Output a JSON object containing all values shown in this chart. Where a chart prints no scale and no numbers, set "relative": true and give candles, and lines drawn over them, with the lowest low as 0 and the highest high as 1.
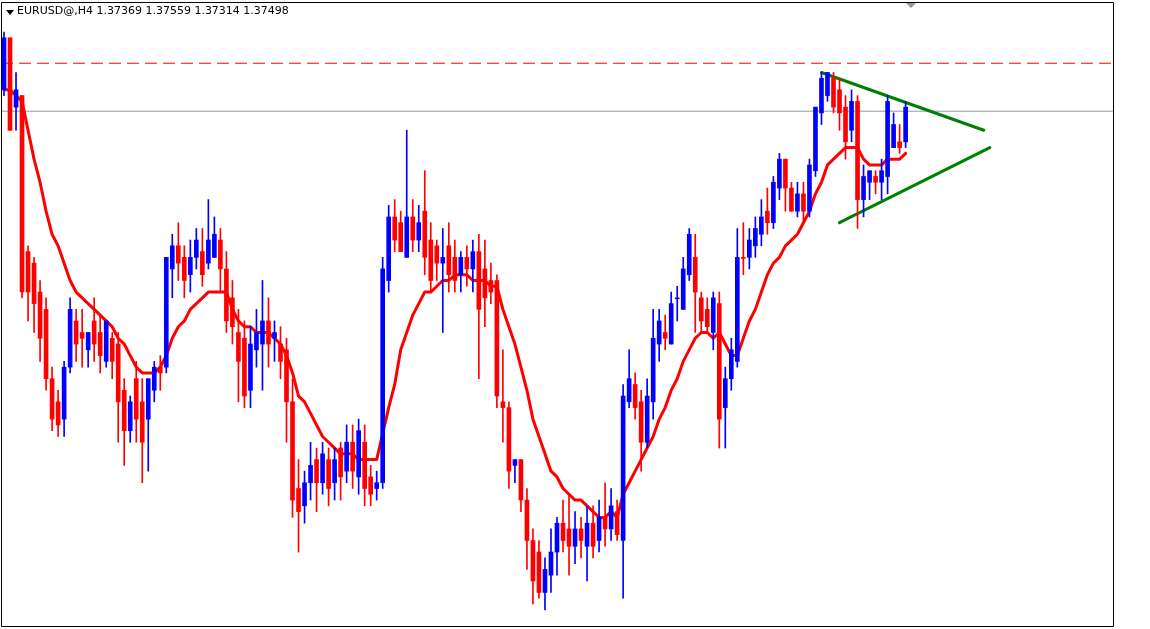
{
  "chart_data": {
    "type": "candlestick",
    "title": "EURUSD@,H4 1.37369 1.37559 1.37314 1.37498",
    "relative": true,
    "categories": [
      null,
      null,
      null,
      null,
      null,
      null,
      null,
      null,
      null,
      null,
      null,
      null,
      null,
      null,
      null,
      null,
      null,
      null,
      null,
      null,
      null,
      null,
      null,
      null,
      null,
      null,
      null,
      null,
      null,
      null,
      null,
      null,
      null,
      null,
      null,
      null,
      null,
      null,
      null,
      null,
      null,
      null,
      null,
      null,
      null,
      null,
      null,
      null,
      null,
      null,
      null,
      null,
      null,
      null,
      null,
      null,
      null,
      null,
      null,
      null,
      null,
      null,
      null,
      null,
      null,
      null,
      null,
      null,
      null,
      null,
      null,
      null,
      null,
      null,
      null,
      null,
      null,
      null,
      null,
      null,
      null,
      null,
      null,
      null,
      null,
      null,
      null,
      null,
      null,
      null,
      null,
      null,
      null,
      null,
      null,
      null,
      null,
      null,
      null,
      null,
      null,
      null,
      null,
      null,
      null,
      null,
      null,
      null,
      null,
      null,
      null,
      null,
      null,
      null,
      null,
      null,
      null,
      null,
      null,
      null,
      null,
      null,
      null,
      null,
      null,
      null,
      null,
      null,
      null,
      null,
      null,
      null,
      null,
      null,
      null,
      null,
      null,
      null,
      null,
      null,
      null,
      null,
      null,
      null,
      null,
      null,
      null,
      null,
      null,
      null,
      null,
      null,
      null,
      null,
      null,
      null,
      null,
      null,
      null,
      null,
      null,
      null,
      null,
      null,
      null,
      null,
      null,
      null,
      null,
      null,
      null,
      null,
      null,
      null,
      null,
      null,
      null,
      null,
      null,
      null,
      null,
      null,
      null,
      null,
      null
    ],
    "ohlc": [
      [
        0.9,
        1.0,
        0.89,
        0.99
      ],
      [
        0.99,
        0.99,
        0.83,
        0.83
      ],
      [
        0.87,
        0.93,
        0.83,
        0.9
      ],
      [
        0.89,
        0.89,
        0.54,
        0.55
      ],
      [
        0.62,
        0.63,
        0.5,
        0.55
      ],
      [
        0.6,
        0.61,
        0.48,
        0.53
      ],
      [
        0.55,
        0.57,
        0.43,
        0.47
      ],
      [
        0.52,
        0.54,
        0.38,
        0.4
      ],
      [
        0.4,
        0.42,
        0.31,
        0.33
      ],
      [
        0.36,
        0.38,
        0.3,
        0.32
      ],
      [
        0.33,
        0.43,
        0.3,
        0.42
      ],
      [
        0.42,
        0.54,
        0.41,
        0.52
      ],
      [
        0.5,
        0.52,
        0.43,
        0.46
      ],
      [
        0.48,
        0.52,
        0.42,
        0.47
      ],
      [
        0.45,
        0.48,
        0.42,
        0.48
      ],
      [
        0.5,
        0.54,
        0.43,
        0.46
      ],
      [
        0.48,
        0.51,
        0.41,
        0.44
      ],
      [
        0.43,
        0.5,
        0.42,
        0.5
      ],
      [
        0.47,
        0.48,
        0.4,
        0.43
      ],
      [
        0.46,
        0.48,
        0.29,
        0.36
      ],
      [
        0.38,
        0.4,
        0.25,
        0.31
      ],
      [
        0.31,
        0.37,
        0.29,
        0.36
      ],
      [
        0.4,
        0.43,
        0.29,
        0.33
      ],
      [
        0.36,
        0.4,
        0.22,
        0.29
      ],
      [
        0.33,
        0.4,
        0.24,
        0.4
      ],
      [
        0.38,
        0.43,
        0.36,
        0.42
      ],
      [
        0.42,
        0.44,
        0.38,
        0.41
      ],
      [
        0.42,
        0.61,
        0.41,
        0.61
      ],
      [
        0.59,
        0.65,
        0.54,
        0.63
      ],
      [
        0.63,
        0.67,
        0.57,
        0.6
      ],
      [
        0.61,
        0.63,
        0.54,
        0.57
      ],
      [
        0.58,
        0.64,
        0.55,
        0.61
      ],
      [
        0.61,
        0.66,
        0.59,
        0.64
      ],
      [
        0.62,
        0.66,
        0.56,
        0.58
      ],
      [
        0.6,
        0.71,
        0.59,
        0.64
      ],
      [
        0.61,
        0.68,
        0.61,
        0.65
      ],
      [
        0.64,
        0.66,
        0.55,
        0.59
      ],
      [
        0.59,
        0.62,
        0.48,
        0.5
      ],
      [
        0.54,
        0.57,
        0.46,
        0.49
      ],
      [
        0.48,
        0.52,
        0.36,
        0.43
      ],
      [
        0.47,
        0.5,
        0.35,
        0.37
      ],
      [
        0.38,
        0.49,
        0.35,
        0.46
      ],
      [
        0.45,
        0.52,
        0.42,
        0.48
      ],
      [
        0.46,
        0.57,
        0.38,
        0.5
      ],
      [
        0.5,
        0.54,
        0.42,
        0.46
      ],
      [
        0.47,
        0.5,
        0.43,
        0.48
      ],
      [
        0.46,
        0.49,
        0.4,
        0.43
      ],
      [
        0.45,
        0.47,
        0.29,
        0.36
      ],
      [
        0.36,
        0.4,
        0.16,
        0.19
      ],
      [
        0.21,
        0.26,
        0.1,
        0.17
      ],
      [
        0.18,
        0.24,
        0.15,
        0.22
      ],
      [
        0.22,
        0.29,
        0.19,
        0.25
      ],
      [
        0.26,
        0.28,
        0.17,
        0.22
      ],
      [
        0.22,
        0.29,
        0.2,
        0.27
      ],
      [
        0.26,
        0.28,
        0.18,
        0.21
      ],
      [
        0.22,
        0.28,
        0.19,
        0.26
      ],
      [
        0.28,
        0.29,
        0.19,
        0.23
      ],
      [
        0.24,
        0.32,
        0.22,
        0.29
      ],
      [
        0.29,
        0.32,
        0.21,
        0.24
      ],
      [
        0.23,
        0.33,
        0.2,
        0.31
      ],
      [
        0.29,
        0.32,
        0.18,
        0.21
      ],
      [
        0.23,
        0.25,
        0.18,
        0.2
      ],
      [
        0.21,
        0.24,
        0.19,
        0.22
      ],
      [
        0.22,
        0.61,
        0.21,
        0.59
      ],
      [
        0.57,
        0.7,
        0.55,
        0.68
      ],
      [
        0.68,
        0.71,
        0.62,
        0.64
      ],
      [
        0.67,
        0.69,
        0.62,
        0.62
      ],
      [
        0.61,
        0.83,
        0.61,
        0.68
      ],
      [
        0.68,
        0.71,
        0.62,
        0.64
      ],
      [
        0.64,
        0.7,
        0.62,
        0.67
      ],
      [
        0.69,
        0.76,
        0.58,
        0.61
      ],
      [
        0.64,
        0.67,
        0.55,
        0.57
      ],
      [
        0.63,
        0.64,
        0.57,
        0.6
      ],
      [
        0.6,
        0.66,
        0.48,
        0.61
      ],
      [
        0.63,
        0.67,
        0.55,
        0.58
      ],
      [
        0.61,
        0.64,
        0.55,
        0.57
      ],
      [
        0.58,
        0.62,
        0.55,
        0.61
      ],
      [
        0.61,
        0.63,
        0.56,
        0.59
      ],
      [
        0.59,
        0.64,
        0.55,
        0.62
      ],
      [
        0.62,
        0.65,
        0.4,
        0.52
      ],
      [
        0.59,
        0.64,
        0.49,
        0.54
      ],
      [
        0.57,
        0.6,
        0.53,
        0.55
      ],
      [
        0.57,
        0.58,
        0.35,
        0.37
      ],
      [
        0.36,
        0.45,
        0.29,
        0.35
      ],
      [
        0.35,
        0.36,
        0.21,
        0.24
      ],
      [
        0.25,
        0.26,
        0.22,
        0.26
      ],
      [
        0.26,
        0.26,
        0.17,
        0.19
      ],
      [
        0.19,
        0.21,
        0.07,
        0.12
      ],
      [
        0.12,
        0.14,
        0.01,
        0.05
      ],
      [
        0.1,
        0.12,
        0.02,
        0.03
      ],
      [
        0.03,
        0.09,
        0.0,
        0.07
      ],
      [
        0.06,
        0.14,
        0.03,
        0.1
      ],
      [
        0.1,
        0.16,
        0.06,
        0.15
      ],
      [
        0.15,
        0.19,
        0.1,
        0.12
      ],
      [
        0.14,
        0.2,
        0.06,
        0.11
      ],
      [
        0.11,
        0.17,
        0.08,
        0.14
      ],
      [
        0.14,
        0.16,
        0.09,
        0.12
      ],
      [
        0.11,
        0.18,
        0.05,
        0.15
      ],
      [
        0.15,
        0.18,
        0.09,
        0.11
      ],
      [
        0.12,
        0.19,
        0.1,
        0.16
      ],
      [
        0.16,
        0.22,
        0.11,
        0.14
      ],
      [
        0.14,
        0.21,
        0.12,
        0.18
      ],
      [
        0.17,
        0.19,
        0.12,
        0.13
      ],
      [
        0.12,
        0.39,
        0.02,
        0.37
      ],
      [
        0.36,
        0.45,
        0.35,
        0.4
      ],
      [
        0.39,
        0.41,
        0.33,
        0.35
      ],
      [
        0.36,
        0.38,
        0.24,
        0.29
      ],
      [
        0.29,
        0.4,
        0.28,
        0.37
      ],
      [
        0.36,
        0.52,
        0.33,
        0.47
      ],
      [
        0.46,
        0.52,
        0.43,
        0.5
      ],
      [
        0.48,
        0.51,
        0.45,
        0.47
      ],
      [
        0.46,
        0.55,
        0.46,
        0.53
      ],
      [
        0.54,
        0.56,
        0.5,
        0.54
      ],
      [
        0.52,
        0.61,
        0.52,
        0.59
      ],
      [
        0.58,
        0.66,
        0.57,
        0.65
      ],
      [
        0.61,
        0.65,
        0.48,
        0.55
      ],
      [
        0.54,
        0.55,
        0.48,
        0.5
      ],
      [
        0.52,
        0.54,
        0.48,
        0.49
      ],
      [
        0.48,
        0.55,
        0.45,
        0.54
      ],
      [
        0.53,
        0.55,
        0.28,
        0.33
      ],
      [
        0.35,
        0.42,
        0.28,
        0.4
      ],
      [
        0.4,
        0.47,
        0.38,
        0.45
      ],
      [
        0.43,
        0.66,
        0.42,
        0.61
      ],
      [
        0.61,
        0.67,
        0.58,
        0.61
      ],
      [
        0.61,
        0.66,
        0.59,
        0.64
      ],
      [
        0.63,
        0.68,
        0.61,
        0.66
      ],
      [
        0.65,
        0.71,
        0.63,
        0.68
      ],
      [
        0.69,
        0.73,
        0.65,
        0.67
      ],
      [
        0.67,
        0.75,
        0.66,
        0.74
      ],
      [
        0.73,
        0.79,
        0.71,
        0.78
      ],
      [
        0.78,
        0.78,
        0.69,
        0.73
      ],
      [
        0.73,
        0.74,
        0.69,
        0.69
      ],
      [
        0.69,
        0.74,
        0.68,
        0.72
      ],
      [
        0.72,
        0.74,
        0.67,
        0.69
      ],
      [
        0.69,
        0.78,
        0.68,
        0.77
      ],
      [
        0.76,
        0.87,
        0.75,
        0.87
      ],
      [
        0.86,
        0.93,
        0.84,
        0.92
      ],
      [
        0.89,
        0.93,
        0.88,
        0.93
      ],
      [
        0.92,
        0.93,
        0.86,
        0.87
      ],
      [
        0.9,
        0.92,
        0.83,
        0.86
      ],
      [
        0.87,
        0.89,
        0.78,
        0.81
      ],
      [
        0.83,
        0.9,
        0.81,
        0.88
      ],
      [
        0.88,
        0.89,
        0.66,
        0.71
      ],
      [
        0.71,
        0.77,
        0.68,
        0.75
      ],
      [
        0.74,
        0.76,
        0.71,
        0.76
      ],
      [
        0.75,
        0.76,
        0.72,
        0.74
      ],
      [
        0.74,
        0.78,
        0.71,
        0.76
      ],
      [
        0.75,
        0.89,
        0.72,
        0.88
      ],
      [
        0.8,
        0.86,
        0.8,
        0.84
      ],
      [
        0.81,
        0.84,
        0.79,
        0.8
      ],
      [
        0.81,
        0.88,
        0.8,
        0.87
      ],
      null,
      null,
      null,
      null,
      null,
      null,
      null,
      null,
      null,
      null,
      null,
      null,
      null,
      null,
      null,
      null,
      null,
      null,
      null,
      null,
      null,
      null,
      null,
      null,
      null,
      null,
      null,
      null,
      null,
      null,
      null,
      null,
      null,
      null
    ],
    "colors": [
      "#0000ff",
      "#ff0000",
      "#0000ff",
      "#ff0000",
      "#ff0000",
      "#ff0000",
      "#ff0000",
      "#ff0000",
      "#ff0000",
      "#ff0000",
      "#0000ff",
      "#0000ff",
      "#ff0000",
      "#ff0000",
      "#0000ff",
      "#ff0000",
      "#ff0000",
      "#0000ff",
      "#ff0000",
      "#ff0000",
      "#ff0000",
      "#0000ff",
      "#ff0000",
      "#ff0000",
      "#0000ff",
      "#0000ff",
      "#ff0000",
      "#0000ff",
      "#0000ff",
      "#ff0000",
      "#ff0000",
      "#0000ff",
      "#0000ff",
      "#ff0000",
      "#0000ff",
      "#0000ff",
      "#ff0000",
      "#ff0000",
      "#ff0000",
      "#ff0000",
      "#ff0000",
      "#0000ff",
      "#0000ff",
      "#0000ff",
      "#ff0000",
      "#0000ff",
      "#ff0000",
      "#ff0000",
      "#ff0000",
      "#ff0000",
      "#0000ff",
      "#0000ff",
      "#ff0000",
      "#0000ff",
      "#ff0000",
      "#0000ff",
      "#ff0000",
      "#0000ff",
      "#ff0000",
      "#0000ff",
      "#ff0000",
      "#ff0000",
      "#0000ff",
      "#0000ff",
      "#0000ff",
      "#ff0000",
      "#ff0000",
      "#0000ff",
      "#ff0000",
      "#0000ff",
      "#ff0000",
      "#ff0000",
      "#ff0000",
      "#0000ff",
      "#ff0000",
      "#ff0000",
      "#0000ff",
      "#ff0000",
      "#0000ff",
      "#ff0000",
      "#ff0000",
      "#ff0000",
      "#ff0000",
      "#ff0000",
      "#ff0000",
      "#0000ff",
      "#ff0000",
      "#ff0000",
      "#ff0000",
      "#ff0000",
      "#0000ff",
      "#0000ff",
      "#0000ff",
      "#ff0000",
      "#ff0000",
      "#0000ff",
      "#ff0000",
      "#0000ff",
      "#ff0000",
      "#0000ff",
      "#ff0000",
      "#0000ff",
      "#ff0000",
      "#0000ff",
      "#0000ff",
      "#ff0000",
      "#ff0000",
      "#0000ff",
      "#0000ff",
      "#0000ff",
      "#ff0000",
      "#0000ff",
      "#0000ff",
      "#0000ff",
      "#0000ff",
      "#ff0000",
      "#ff0000",
      "#ff0000",
      "#0000ff",
      "#ff0000",
      "#0000ff",
      "#0000ff",
      "#0000ff",
      "#ff0000",
      "#0000ff",
      "#0000ff",
      "#0000ff",
      "#ff0000",
      "#0000ff",
      "#0000ff",
      "#ff0000",
      "#ff0000",
      "#0000ff",
      "#ff0000",
      "#0000ff",
      "#0000ff",
      "#0000ff",
      "#0000ff",
      "#ff0000",
      "#ff0000",
      "#ff0000",
      "#0000ff",
      "#ff0000",
      "#0000ff",
      "#0000ff",
      "#ff0000",
      "#0000ff",
      "#0000ff",
      "#0000ff",
      "#ff0000",
      "#0000ff",
      null,
      null,
      null,
      null,
      null,
      null,
      null,
      null,
      null,
      null,
      null,
      null,
      null,
      null,
      null,
      null,
      null,
      null,
      null,
      null,
      null,
      null,
      null,
      null,
      null,
      null,
      null,
      null,
      null,
      null,
      null,
      null,
      null,
      null
    ],
    "series": [
      {
        "type": "line",
        "color": "#ff0000",
        "values": [
          0.9,
          0.9,
          0.89,
          0.88,
          0.83,
          0.78,
          0.74,
          0.69,
          0.65,
          0.63,
          0.6,
          0.57,
          0.55,
          0.54,
          0.53,
          0.52,
          0.51,
          0.5,
          0.49,
          0.47,
          0.46,
          0.44,
          0.42,
          0.41,
          0.41,
          0.41,
          0.42,
          0.44,
          0.47,
          0.49,
          0.5,
          0.52,
          0.53,
          0.54,
          0.55,
          0.55,
          0.55,
          0.55,
          0.52,
          0.5,
          0.49,
          0.49,
          0.48,
          0.48,
          0.48,
          0.47,
          0.46,
          0.44,
          0.41,
          0.37,
          0.36,
          0.34,
          0.32,
          0.3,
          0.29,
          0.28,
          0.27,
          0.27,
          0.27,
          0.26,
          0.26,
          0.26,
          0.26,
          null,
          0.35,
          0.39,
          0.45,
          0.48,
          0.51,
          0.53,
          0.55,
          0.55,
          0.56,
          0.57,
          0.57,
          0.58,
          0.58,
          0.58,
          0.57,
          0.57,
          0.57,
          0.56,
          0.56,
          0.52,
          0.49,
          0.46,
          0.42,
          0.38,
          0.33,
          0.3,
          0.27,
          0.24,
          0.23,
          0.21,
          0.2,
          0.19,
          0.19,
          0.18,
          0.17,
          0.16,
          0.16,
          0.17,
          0.16,
          0.2,
          0.22,
          0.24,
          0.26,
          0.28,
          0.3,
          0.33,
          0.35,
          0.38,
          0.4,
          0.43,
          0.45,
          0.47,
          0.48,
          0.48,
          0.47,
          0.48,
          0.46,
          0.44,
          0.44,
          0.47,
          0.5,
          0.52,
          0.55,
          0.58,
          0.6,
          0.61,
          0.63,
          0.64,
          0.65,
          0.67,
          0.69,
          0.72,
          0.74,
          0.77,
          0.78,
          0.79,
          0.8,
          0.8,
          0.8,
          0.78,
          0.77,
          0.77,
          0.77,
          0.78,
          0.78,
          0.78,
          0.79,
          null,
          null,
          null,
          null,
          null,
          null,
          null,
          null,
          null,
          null,
          null,
          null,
          null,
          null,
          null,
          null,
          null,
          null,
          null,
          null,
          null,
          null,
          null,
          null,
          null,
          null,
          null,
          null,
          null,
          null,
          null,
          null,
          null,
          null
        ]
      },
      {
        "type": "line",
        "color": "#008000",
        "values": [
          null,
          null,
          null,
          null,
          null,
          null,
          null,
          null,
          null,
          null,
          null,
          null,
          null,
          null,
          null,
          null,
          null,
          null,
          null,
          null,
          null,
          null,
          null,
          null,
          null,
          null,
          null,
          null,
          null,
          null,
          null,
          null,
          null,
          null,
          null,
          null,
          null,
          null,
          null,
          null,
          null,
          null,
          null,
          null,
          null,
          null,
          null,
          null,
          null,
          null,
          null,
          null,
          null,
          null,
          null,
          null,
          null,
          null,
          null,
          null,
          null,
          null,
          null,
          null,
          null,
          null,
          null,
          null,
          null,
          null,
          null,
          null,
          null,
          null,
          null,
          null,
          null,
          null,
          null,
          null,
          null,
          null,
          null,
          null,
          null,
          null,
          null,
          null,
          null,
          null,
          null,
          null,
          null,
          null,
          null,
          null,
          null,
          null,
          null,
          null,
          null,
          null,
          null,
          null,
          null,
          null,
          null,
          null,
          null,
          null,
          null,
          null,
          null,
          null,
          null,
          null,
          null,
          null,
          null,
          null,
          null,
          null,
          null,
          null,
          null,
          null,
          null,
          null,
          null,
          null,
          null,
          null,
          null,
          null,
          null,
          null,
          0.93,
          null,
          null,
          null,
          null,
          null,
          null,
          null,
          null,
          null,
          null,
          null,
          null,
          null,
          null,
          null,
          null,
          null,
          null,
          null,
          null,
          null,
          null,
          null,
          null,
          null,
          null,
          0.83,
          null,
          null,
          null,
          null,
          null,
          null,
          null,
          null,
          null,
          null,
          null,
          null,
          null,
          null,
          null,
          null,
          null,
          null,
          null,
          null,
          null
        ]
      },
      {
        "type": "line",
        "color": "#008000",
        "values": [
          null,
          null,
          null,
          null,
          null,
          null,
          null,
          null,
          null,
          null,
          null,
          null,
          null,
          null,
          null,
          null,
          null,
          null,
          null,
          null,
          null,
          null,
          null,
          null,
          null,
          null,
          null,
          null,
          null,
          null,
          null,
          null,
          null,
          null,
          null,
          null,
          null,
          null,
          null,
          null,
          null,
          null,
          null,
          null,
          null,
          null,
          null,
          null,
          null,
          null,
          null,
          null,
          null,
          null,
          null,
          null,
          null,
          null,
          null,
          null,
          null,
          null,
          null,
          null,
          null,
          null,
          null,
          null,
          null,
          null,
          null,
          null,
          null,
          null,
          null,
          null,
          null,
          null,
          null,
          null,
          null,
          null,
          null,
          null,
          null,
          null,
          null,
          null,
          null,
          null,
          null,
          null,
          null,
          null,
          null,
          null,
          null,
          null,
          null,
          null,
          null,
          null,
          null,
          null,
          null,
          null,
          null,
          null,
          null,
          null,
          null,
          null,
          null,
          null,
          null,
          null,
          null,
          null,
          null,
          null,
          null,
          null,
          null,
          null,
          null,
          null,
          null,
          null,
          null,
          null,
          null,
          null,
          null,
          null,
          null,
          null,
          null,
          null,
          null,
          0.67,
          null,
          null,
          null,
          null,
          null,
          null,
          null,
          null,
          null,
          null,
          null,
          null,
          null,
          null,
          null,
          null,
          null,
          null,
          null,
          null,
          null,
          null,
          null,
          null,
          0.8,
          null,
          null,
          null,
          null,
          null,
          null,
          null,
          null,
          null,
          null,
          null,
          null,
          null,
          null,
          null,
          null,
          null,
          null,
          null,
          null
        ]
      }
    ],
    "ref_lines": [
      {
        "axis": "y",
        "value": 0.946,
        "color": "#ff0000",
        "line_style": "dashed"
      },
      {
        "axis": "y",
        "value": 0.863,
        "color": "#8a9aa8",
        "line_style": "solid"
      }
    ]
  }
}
